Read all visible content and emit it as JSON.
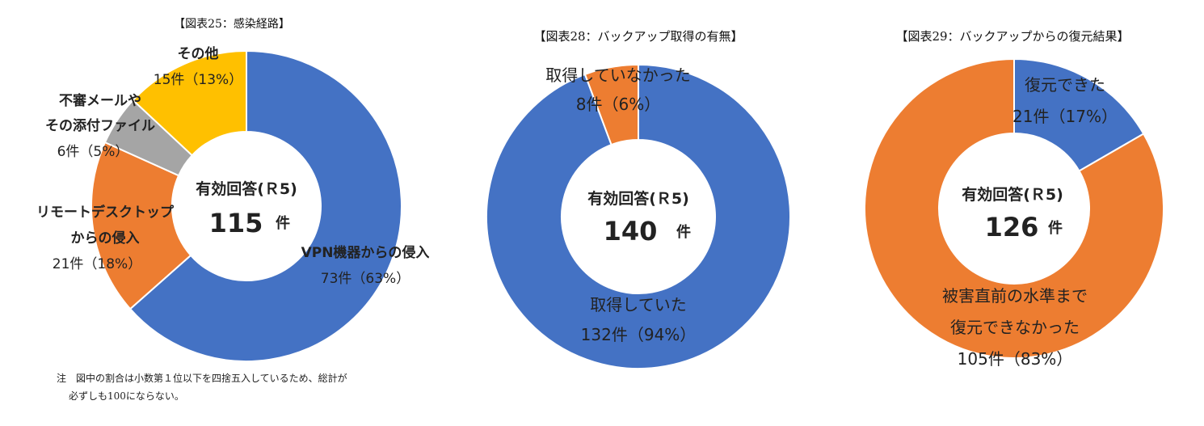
{
  "colors": {
    "blue": "#4472C4",
    "orange": "#ED7D31",
    "gray": "#A5A5A5",
    "yellow": "#FFC000"
  },
  "chart_data": [
    {
      "type": "pie",
      "title": "【図表25：感染経路】",
      "center_label": "有効回答(Ｒ5)",
      "center_value": "115",
      "center_unit": "件",
      "slices": [
        {
          "name": "VPN機器からの侵入",
          "count_text": "73件（63%）",
          "value": 73,
          "color": "#4472C4"
        },
        {
          "name": "リモートデスクトップ",
          "name2": "からの侵入",
          "count_text": "21件（18%）",
          "value": 21,
          "color": "#ED7D31"
        },
        {
          "name": "不審メールや",
          "name2": "その添付ファイル",
          "count_text": "6件（5%）",
          "value": 6,
          "color": "#A5A5A5"
        },
        {
          "name": "その他",
          "count_text": "15件（13%）",
          "value": 15,
          "color": "#FFC000"
        }
      ]
    },
    {
      "type": "pie",
      "title": "【図表28：バックアップ取得の有無】",
      "center_label": "有効回答(Ｒ5)",
      "center_value": "140",
      "center_unit": "件",
      "slices": [
        {
          "name": "取得していた",
          "count_text": "132件（94%）",
          "value": 132,
          "color": "#4472C4"
        },
        {
          "name": "取得していなかった",
          "count_text": "8件（6%）",
          "value": 8,
          "color": "#ED7D31"
        }
      ]
    },
    {
      "type": "pie",
      "title": "【図表29：バックアップからの復元結果】",
      "center_label": "有効回答(Ｒ5)",
      "center_value": "126",
      "center_unit": "件",
      "slices": [
        {
          "name": "復元できた",
          "count_text": "21件（17%）",
          "value": 21,
          "color": "#4472C4"
        },
        {
          "name": "被害直前の水準まで",
          "name2": "復元できなかった",
          "count_text": "105件（83%）",
          "value": 105,
          "color": "#ED7D31"
        }
      ]
    }
  ],
  "note": {
    "line1": "注　図中の割合は小数第１位以下を四捨五入しているため、総計が",
    "line2": "必ずしも100にならない。"
  }
}
